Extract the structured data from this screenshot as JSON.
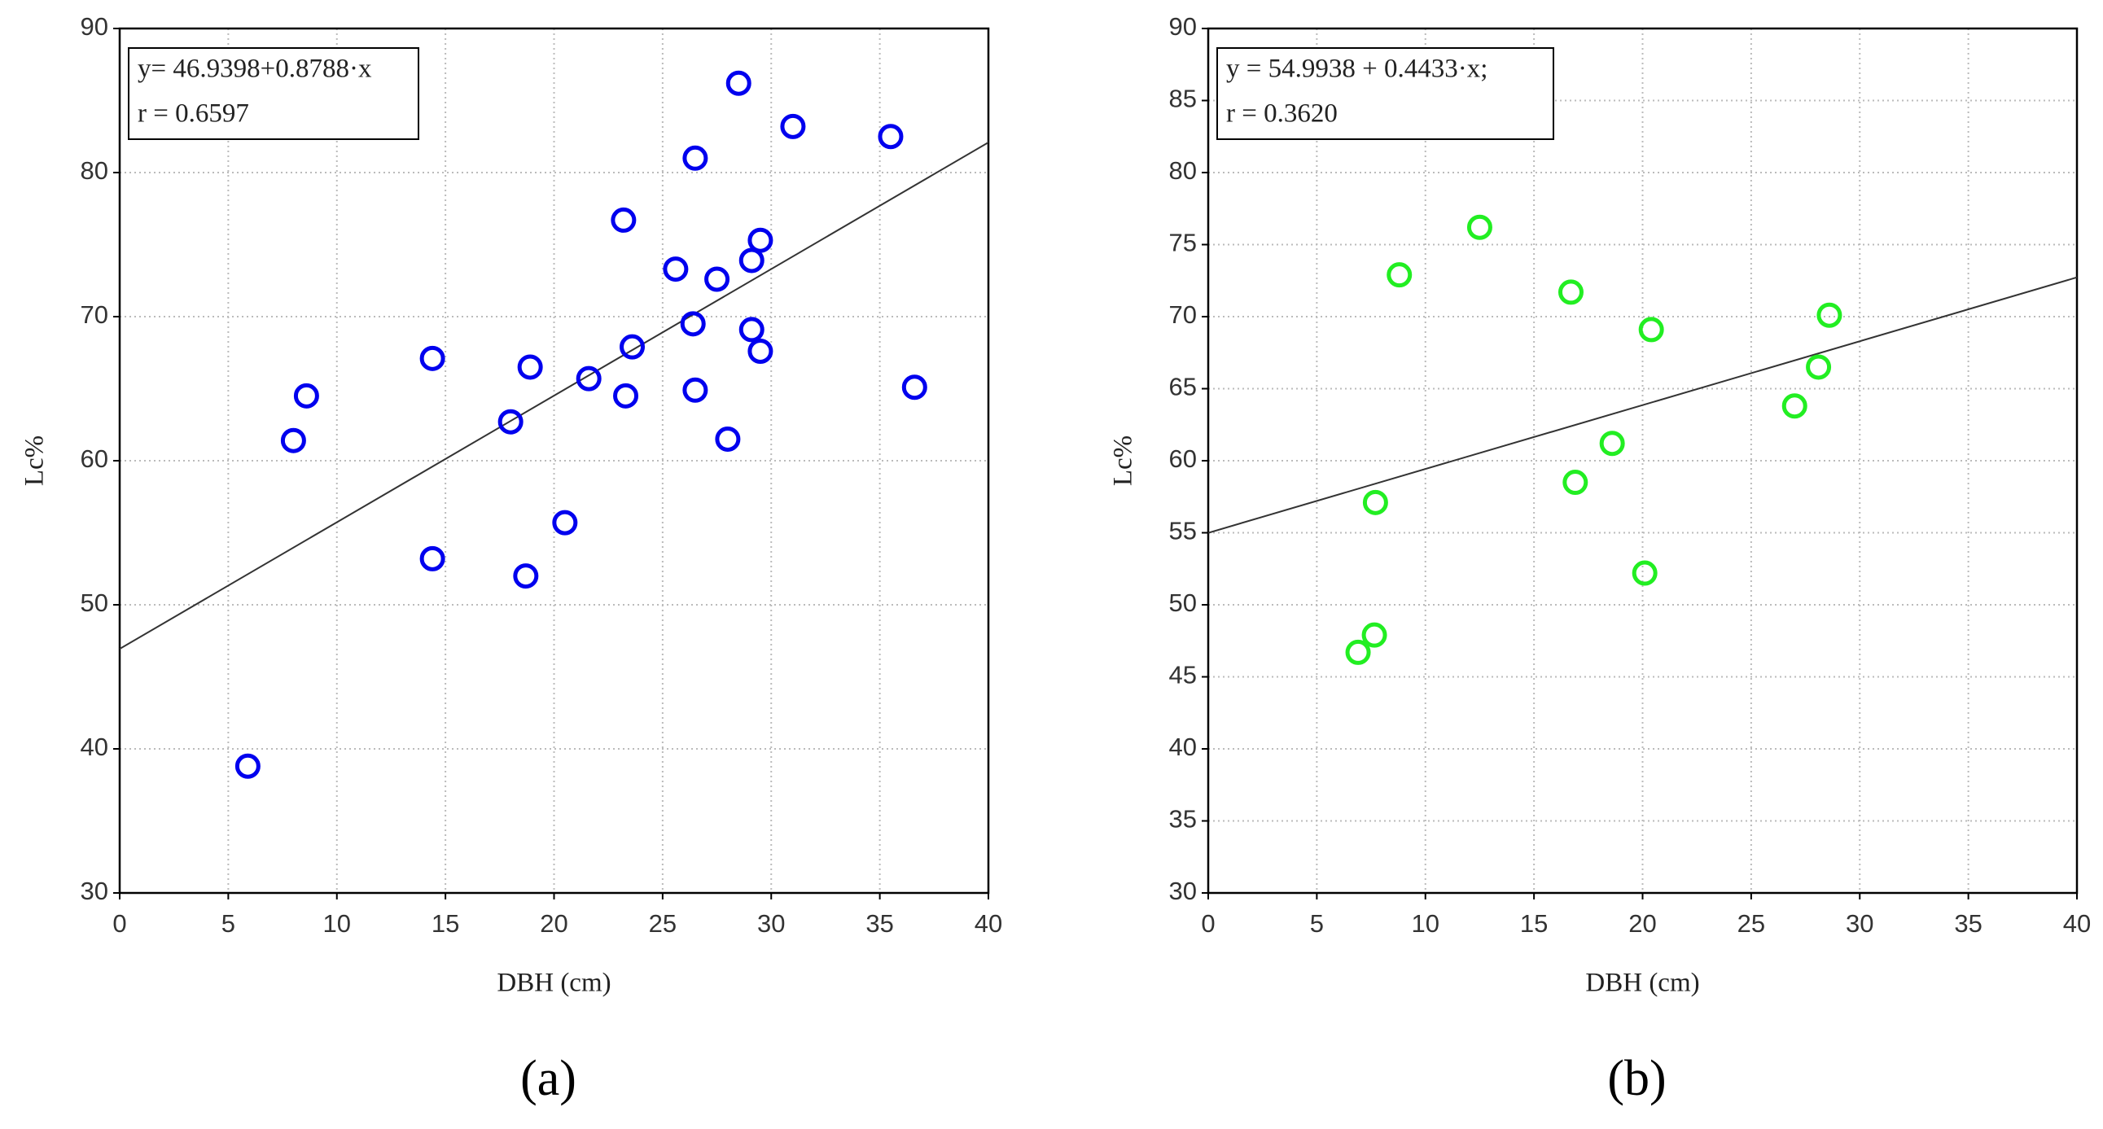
{
  "chart_data": [
    {
      "type": "scatter",
      "x_label": "DBH (cm)",
      "y_label": "Lc%",
      "caption": "(a)",
      "annotation": [
        "y= 46.9398+0.8788·x",
        "r = 0.6597"
      ],
      "trend": {
        "intercept": 46.9398,
        "slope": 0.8788
      },
      "color": "#0000ee",
      "grid": true,
      "xlim": [
        0,
        40
      ],
      "xticks": [
        0,
        5,
        10,
        15,
        20,
        25,
        30,
        35,
        40
      ],
      "ylim": [
        30,
        90
      ],
      "yticks": [
        30,
        40,
        50,
        60,
        70,
        80,
        90
      ],
      "x": [
        5.9,
        8.0,
        8.6,
        14.4,
        14.4,
        18.0,
        18.7,
        18.9,
        20.5,
        21.6,
        23.2,
        23.3,
        23.6,
        25.6,
        26.4,
        26.5,
        26.5,
        27.5,
        28.0,
        28.5,
        29.1,
        29.1,
        29.5,
        29.5,
        31.0,
        35.5,
        36.6
      ],
      "values": [
        38.8,
        61.4,
        64.5,
        67.1,
        53.2,
        62.7,
        52.0,
        66.5,
        55.7,
        65.7,
        76.7,
        64.5,
        67.9,
        73.3,
        69.5,
        81.0,
        64.9,
        72.6,
        61.5,
        86.2,
        73.9,
        69.1,
        75.3,
        67.6,
        83.2,
        82.5,
        65.1
      ]
    },
    {
      "type": "scatter",
      "x_label": "DBH (cm)",
      "y_label": "Lc%",
      "caption": "(b)",
      "annotation": [
        "y = 54.9938 + 0.4433·x;",
        "r = 0.3620"
      ],
      "trend": {
        "intercept": 54.9938,
        "slope": 0.4433
      },
      "color": "#22ee22",
      "grid": true,
      "xlim": [
        0,
        40
      ],
      "xticks": [
        0,
        5,
        10,
        15,
        20,
        25,
        30,
        35,
        40
      ],
      "ylim": [
        30,
        90
      ],
      "yticks": [
        30,
        35,
        40,
        45,
        50,
        55,
        60,
        65,
        70,
        75,
        80,
        85,
        90
      ],
      "x": [
        6.9,
        7.65,
        7.7,
        8.8,
        12.5,
        16.7,
        16.9,
        18.6,
        20.1,
        20.4,
        27.0,
        28.1,
        28.6
      ],
      "values": [
        46.7,
        47.9,
        57.1,
        72.9,
        76.2,
        71.7,
        58.5,
        61.2,
        52.2,
        69.1,
        63.8,
        66.5,
        70.1
      ]
    }
  ]
}
